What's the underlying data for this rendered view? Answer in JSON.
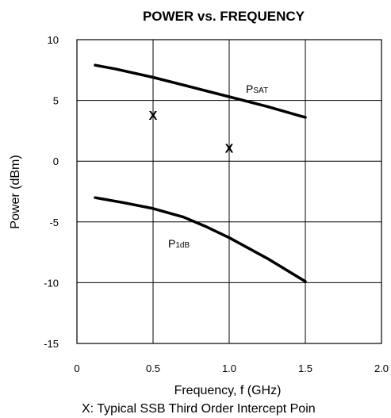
{
  "chart_data": {
    "type": "line",
    "title": "POWER vs. FREQUENCY",
    "xlabel": "Frequency, f (GHz)",
    "ylabel": "Power (dBm)",
    "xlim": [
      0,
      2.0
    ],
    "ylim": [
      -15,
      10
    ],
    "xticks": [
      "0",
      "0.5",
      "1.0",
      "1.5",
      "2.0"
    ],
    "yticks": [
      "10",
      "5",
      "0",
      "-5",
      "-10",
      "-15"
    ],
    "grid": true,
    "series": [
      {
        "name": "PSAT",
        "name_main": "P",
        "name_sub": "SAT",
        "x": [
          0.12,
          0.25,
          0.5,
          0.75,
          1.0,
          1.25,
          1.5
        ],
        "y": [
          7.9,
          7.6,
          6.9,
          6.1,
          5.3,
          4.5,
          3.6
        ]
      },
      {
        "name": "P1dB",
        "name_main": "P",
        "name_sub": "1dB",
        "x": [
          0.12,
          0.3,
          0.5,
          0.7,
          0.85,
          1.0,
          1.25,
          1.5
        ],
        "y": [
          -3.0,
          -3.4,
          -3.9,
          -4.6,
          -5.4,
          -6.3,
          -8.0,
          -9.9
        ]
      }
    ],
    "markers": [
      {
        "label": "X",
        "x": 0.5,
        "y": 3.8
      },
      {
        "label": "X",
        "x": 1.0,
        "y": 1.1
      }
    ],
    "footnote": "X: Typical SSB Third Order Intercept Poin"
  }
}
